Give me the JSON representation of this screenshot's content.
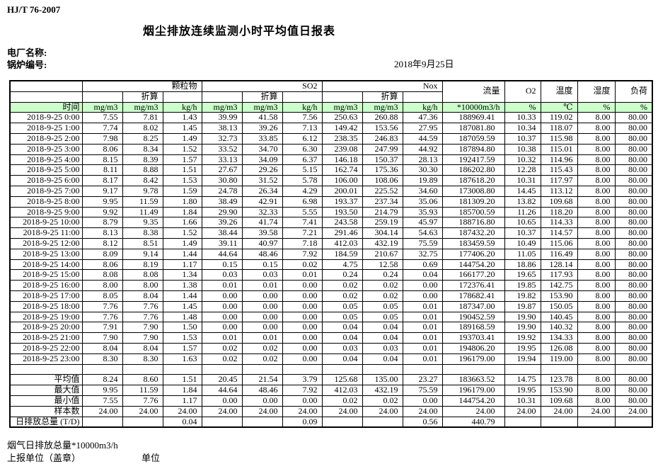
{
  "page": {
    "doc_code": "HJ/T  76-2007",
    "title": "烟尘排放连续监测小时平均值日报表",
    "plant_label": "电厂名称:",
    "boiler_label": "锅炉编号:",
    "date": "2018年9月25日"
  },
  "colors": {
    "header_green": "#ccffcc",
    "border": "#000000"
  },
  "table": {
    "header": {
      "time": "时间",
      "groups": [
        {
          "label": "颗粒物"
        },
        {
          "label": "SO2"
        },
        {
          "label": "Nox"
        }
      ],
      "converted": "折算",
      "flow": "流量",
      "o2": "O2",
      "temperature": "温度",
      "humidity": "湿度",
      "load": "负荷",
      "units": [
        "mg/m3",
        "mg/m3",
        "kg/h",
        "mg/m3",
        "mg/m3",
        "kg/h",
        "mg/m3",
        "mg/m3",
        "kg/h",
        "*10000m3/h",
        "%",
        "℃",
        "%",
        "%"
      ]
    },
    "rows": [
      {
        "time": "2018-9-25 0:00",
        "values": [
          "7.55",
          "7.81",
          "1.43",
          "39.99",
          "41.58",
          "7.56",
          "250.63",
          "260.88",
          "47.36",
          "188969.41",
          "10.33",
          "119.02",
          "8.00",
          "80.00"
        ]
      },
      {
        "time": "2018-9-25 1:00",
        "values": [
          "7.74",
          "8.02",
          "1.45",
          "38.13",
          "39.26",
          "7.13",
          "149.42",
          "153.56",
          "27.95",
          "187081.80",
          "10.34",
          "118.07",
          "8.00",
          "80.00"
        ]
      },
      {
        "time": "2018-9-25 2:00",
        "values": [
          "7.98",
          "8.25",
          "1.49",
          "32.73",
          "33.85",
          "6.12",
          "238.35",
          "246.83",
          "44.59",
          "187059.59",
          "10.37",
          "115.98",
          "8.00",
          "80.00"
        ]
      },
      {
        "time": "2018-9-25 3:00",
        "values": [
          "8.06",
          "8.34",
          "1.52",
          "33.52",
          "34.70",
          "6.30",
          "239.08",
          "247.99",
          "44.92",
          "187894.80",
          "10.38",
          "115.01",
          "8.00",
          "80.00"
        ]
      },
      {
        "time": "2018-9-25 4:00",
        "values": [
          "8.15",
          "8.39",
          "1.57",
          "33.13",
          "34.09",
          "6.37",
          "146.18",
          "150.37",
          "28.13",
          "192417.59",
          "10.32",
          "114.96",
          "8.00",
          "80.00"
        ]
      },
      {
        "time": "2018-9-25 5:00",
        "values": [
          "8.11",
          "8.88",
          "1.51",
          "27.67",
          "29.26",
          "5.15",
          "162.74",
          "175.36",
          "30.30",
          "186202.80",
          "12.28",
          "115.43",
          "8.00",
          "80.00"
        ]
      },
      {
        "time": "2018-9-25 6:00",
        "values": [
          "8.17",
          "8.42",
          "1.53",
          "30.80",
          "31.52",
          "5.78",
          "106.00",
          "108.06",
          "19.89",
          "187618.20",
          "10.31",
          "117.97",
          "8.00",
          "80.00"
        ]
      },
      {
        "time": "2018-9-25 7:00",
        "values": [
          "9.17",
          "9.78",
          "1.59",
          "24.78",
          "26.34",
          "4.29",
          "200.01",
          "225.52",
          "34.60",
          "173008.80",
          "14.45",
          "113.12",
          "8.00",
          "80.00"
        ]
      },
      {
        "time": "2018-9-25 8:00",
        "values": [
          "9.95",
          "11.59",
          "1.80",
          "38.49",
          "42.91",
          "6.98",
          "193.37",
          "237.34",
          "35.06",
          "181309.20",
          "13.82",
          "109.68",
          "8.00",
          "80.00"
        ]
      },
      {
        "time": "2018-9-25 9:00",
        "values": [
          "9.92",
          "11.49",
          "1.84",
          "29.90",
          "32.33",
          "5.55",
          "193.50",
          "214.79",
          "35.93",
          "185700.59",
          "11.26",
          "118.20",
          "8.00",
          "80.00"
        ]
      },
      {
        "time": "2018-9-25 10:00",
        "values": [
          "8.79",
          "9.35",
          "1.66",
          "39.26",
          "41.74",
          "7.41",
          "243.58",
          "259.19",
          "45.97",
          "188716.80",
          "10.65",
          "114.33",
          "8.00",
          "80.00"
        ]
      },
      {
        "time": "2018-9-25 11:00",
        "values": [
          "8.13",
          "8.38",
          "1.52",
          "38.44",
          "39.58",
          "7.21",
          "291.46",
          "304.14",
          "54.63",
          "187432.20",
          "10.37",
          "114.57",
          "8.00",
          "80.00"
        ]
      },
      {
        "time": "2018-9-25 12:00",
        "values": [
          "8.12",
          "8.51",
          "1.49",
          "39.11",
          "40.97",
          "7.18",
          "412.03",
          "432.19",
          "75.59",
          "183459.59",
          "10.49",
          "115.06",
          "8.00",
          "80.00"
        ]
      },
      {
        "time": "2018-9-25 13:00",
        "values": [
          "8.09",
          "9.14",
          "1.44",
          "44.64",
          "48.46",
          "7.92",
          "184.59",
          "210.67",
          "32.75",
          "177406.20",
          "11.05",
          "116.49",
          "8.00",
          "80.00"
        ]
      },
      {
        "time": "2018-9-25 14:00",
        "values": [
          "8.06",
          "8.19",
          "1.17",
          "0.15",
          "0.15",
          "0.02",
          "4.75",
          "12.58",
          "0.69",
          "144754.20",
          "18.86",
          "128.14",
          "8.00",
          "80.00"
        ]
      },
      {
        "time": "2018-9-25 15:00",
        "values": [
          "8.08",
          "8.08",
          "1.34",
          "0.03",
          "0.03",
          "0.01",
          "0.24",
          "0.24",
          "0.04",
          "166177.20",
          "19.65",
          "117.93",
          "8.00",
          "80.00"
        ]
      },
      {
        "time": "2018-9-25 16:00",
        "values": [
          "8.00",
          "8.00",
          "1.38",
          "0.01",
          "0.01",
          "0.00",
          "0.02",
          "0.02",
          "0.00",
          "172376.41",
          "19.85",
          "142.75",
          "8.00",
          "80.00"
        ]
      },
      {
        "time": "2018-9-25 17:00",
        "values": [
          "8.05",
          "8.04",
          "1.44",
          "0.00",
          "0.00",
          "0.00",
          "0.02",
          "0.02",
          "0.00",
          "178682.41",
          "19.82",
          "153.90",
          "8.00",
          "80.00"
        ]
      },
      {
        "time": "2018-9-25 18:00",
        "values": [
          "7.76",
          "7.76",
          "1.45",
          "0.00",
          "0.00",
          "0.00",
          "0.05",
          "0.05",
          "0.01",
          "187347.00",
          "19.87",
          "150.05",
          "8.00",
          "80.00"
        ]
      },
      {
        "time": "2018-9-25 19:00",
        "values": [
          "7.76",
          "7.76",
          "1.48",
          "0.00",
          "0.00",
          "0.00",
          "0.05",
          "0.05",
          "0.01",
          "190452.59",
          "19.90",
          "140.45",
          "8.00",
          "80.00"
        ]
      },
      {
        "time": "2018-9-25 20:00",
        "values": [
          "7.91",
          "7.90",
          "1.50",
          "0.00",
          "0.00",
          "0.00",
          "0.04",
          "0.04",
          "0.01",
          "189168.59",
          "19.90",
          "140.32",
          "8.00",
          "80.00"
        ]
      },
      {
        "time": "2018-9-25 21:00",
        "values": [
          "7.90",
          "7.90",
          "1.53",
          "0.01",
          "0.01",
          "0.00",
          "0.04",
          "0.04",
          "0.01",
          "193703.41",
          "19.92",
          "134.33",
          "8.00",
          "80.00"
        ]
      },
      {
        "time": "2018-9-25 22:00",
        "values": [
          "8.04",
          "8.04",
          "1.57",
          "0.02",
          "0.02",
          "0.00",
          "0.03",
          "0.03",
          "0.01",
          "194806.20",
          "19.95",
          "126.08",
          "8.00",
          "80.00"
        ]
      },
      {
        "time": "2018-9-25 23:00",
        "values": [
          "8.30",
          "8.30",
          "1.63",
          "0.02",
          "0.02",
          "0.00",
          "0.04",
          "0.04",
          "0.01",
          "196179.00",
          "19.94",
          "119.00",
          "8.00",
          "80.00"
        ]
      }
    ],
    "summary": [
      {
        "label": "平均值",
        "values": [
          "8.24",
          "8.60",
          "1.51",
          "20.45",
          "21.54",
          "3.79",
          "125.68",
          "135.00",
          "23.27",
          "183663.52",
          "14.75",
          "123.78",
          "8.00",
          "80.00"
        ]
      },
      {
        "label": "最大值",
        "values": [
          "9.95",
          "11.59",
          "1.84",
          "44.64",
          "48.46",
          "7.92",
          "412.03",
          "432.19",
          "75.59",
          "196179.00",
          "19.95",
          "153.90",
          "8.00",
          "80.00"
        ]
      },
      {
        "label": "最小值",
        "values": [
          "7.55",
          "7.76",
          "1.17",
          "0.00",
          "0.00",
          "0.00",
          "0.02",
          "0.02",
          "0.00",
          "144754.20",
          "10.31",
          "109.68",
          "8.00",
          "80.00"
        ]
      },
      {
        "label": "样本数",
        "values": [
          "24.00",
          "24.00",
          "24.00",
          "24.00",
          "24.00",
          "24.00",
          "24.00",
          "24.00",
          "24.00",
          "24.00",
          "24.00",
          "24.00",
          "24.00",
          "24.00"
        ]
      },
      {
        "label": "日排放总量 (T/D)",
        "values": [
          "",
          "",
          "0.04",
          "",
          "",
          "0.09",
          "",
          "",
          "0.56",
          "440.79",
          "",
          "",
          "",
          ""
        ]
      }
    ]
  },
  "footer": {
    "flow_total_note": "烟气日排放总量*10000m3/h",
    "report_unit_label": "上报单位（盖章）",
    "unit_label": "单位"
  }
}
